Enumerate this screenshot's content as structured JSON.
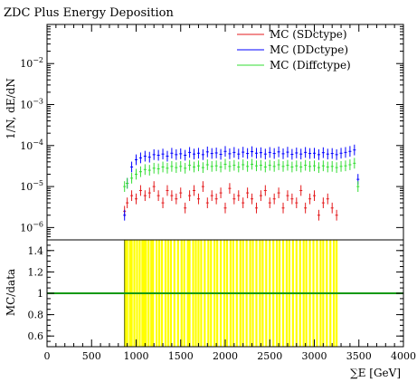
{
  "chart_data": [
    {
      "type": "scatter",
      "panel": "main",
      "title": "ZDC Plus Energy Deposition",
      "ylabel": "1/N, dE/dN",
      "xlabel": "",
      "yscale": "log",
      "ylim": [
        5e-07,
        0.09
      ],
      "xlim": [
        0,
        4000
      ],
      "yticks": [
        {
          "value": 1e-06,
          "label": "10^{-6}"
        },
        {
          "value": 1e-05,
          "label": "10^{-5}"
        },
        {
          "value": 0.0001,
          "label": "10^{-4}"
        },
        {
          "value": 0.001,
          "label": "10^{-3}"
        },
        {
          "value": 0.01,
          "label": "10^{-2}"
        }
      ],
      "legend_position": "top-right",
      "series": [
        {
          "name": "MC (SDctype)",
          "color": "#e41a1c",
          "x": [
            870,
            900,
            950,
            1000,
            1050,
            1100,
            1150,
            1200,
            1250,
            1300,
            1350,
            1400,
            1450,
            1500,
            1550,
            1600,
            1650,
            1700,
            1750,
            1800,
            1850,
            1900,
            1950,
            2000,
            2050,
            2100,
            2150,
            2200,
            2250,
            2300,
            2350,
            2400,
            2450,
            2500,
            2550,
            2600,
            2650,
            2700,
            2750,
            2800,
            2850,
            2900,
            2950,
            3000,
            3050,
            3100,
            3150,
            3200,
            3250
          ],
          "y": [
            2.5e-06,
            4e-06,
            6e-06,
            5e-06,
            8e-06,
            6e-06,
            7e-06,
            1e-05,
            6e-06,
            4e-06,
            8e-06,
            6e-06,
            5e-06,
            7e-06,
            3e-06,
            6e-06,
            8e-06,
            5e-06,
            1e-05,
            4e-06,
            6e-06,
            5e-06,
            7e-06,
            3e-06,
            9e-06,
            5e-06,
            6e-06,
            4e-06,
            7e-06,
            5e-06,
            3e-06,
            6e-06,
            8e-06,
            4e-06,
            5e-06,
            7e-06,
            3e-06,
            6e-06,
            5e-06,
            4e-06,
            8e-06,
            3e-06,
            5e-06,
            6e-06,
            2e-06,
            4e-06,
            5e-06,
            3e-06,
            2e-06
          ]
        },
        {
          "name": "MC (DDctype)",
          "color": "#0000ff",
          "x": [
            870,
            900,
            950,
            1000,
            1050,
            1100,
            1150,
            1200,
            1250,
            1300,
            1350,
            1400,
            1450,
            1500,
            1550,
            1600,
            1650,
            1700,
            1750,
            1800,
            1850,
            1900,
            1950,
            2000,
            2050,
            2100,
            2150,
            2200,
            2250,
            2300,
            2350,
            2400,
            2450,
            2500,
            2550,
            2600,
            2650,
            2700,
            2750,
            2800,
            2850,
            2900,
            2950,
            3000,
            3050,
            3100,
            3150,
            3200,
            3250,
            3300,
            3350,
            3400,
            3450,
            3490
          ],
          "y": [
            2e-06,
            1.2e-05,
            3e-05,
            4.5e-05,
            5e-05,
            5.5e-05,
            5.2e-05,
            6e-05,
            5.8e-05,
            6.2e-05,
            5.5e-05,
            6.5e-05,
            6e-05,
            6.3e-05,
            5.8e-05,
            6.8e-05,
            6.2e-05,
            6.5e-05,
            6e-05,
            7e-05,
            6.4e-05,
            6.6e-05,
            6.1e-05,
            7.2e-05,
            6.3e-05,
            6.8e-05,
            6.2e-05,
            6.9e-05,
            6.4e-05,
            7.1e-05,
            6.5e-05,
            6.7e-05,
            6.2e-05,
            6.8e-05,
            6.4e-05,
            7e-05,
            6.3e-05,
            6.9e-05,
            6.1e-05,
            6.6e-05,
            6.2e-05,
            6.8e-05,
            6.4e-05,
            6.5e-05,
            6e-05,
            6.7e-05,
            6.2e-05,
            6.4e-05,
            6e-05,
            6.5e-05,
            6.8e-05,
            7.2e-05,
            7.8e-05,
            1.5e-05
          ]
        },
        {
          "name": "MC (Diffctype)",
          "color": "#33dd33",
          "x": [
            870,
            900,
            950,
            1000,
            1050,
            1100,
            1150,
            1200,
            1250,
            1300,
            1350,
            1400,
            1450,
            1500,
            1550,
            1600,
            1650,
            1700,
            1750,
            1800,
            1850,
            1900,
            1950,
            2000,
            2050,
            2100,
            2150,
            2200,
            2250,
            2300,
            2350,
            2400,
            2450,
            2500,
            2550,
            2600,
            2650,
            2700,
            2750,
            2800,
            2850,
            2900,
            2950,
            3000,
            3050,
            3100,
            3150,
            3200,
            3250,
            3300,
            3350,
            3400,
            3450,
            3490
          ],
          "y": [
            1e-05,
            1.2e-05,
            1.6e-05,
            2e-05,
            2.3e-05,
            2.6e-05,
            2.5e-05,
            2.8e-05,
            2.7e-05,
            3e-05,
            2.8e-05,
            3.1e-05,
            2.9e-05,
            3.1e-05,
            2.8e-05,
            3.3e-05,
            3e-05,
            3.2e-05,
            2.9e-05,
            3.4e-05,
            3.1e-05,
            3.2e-05,
            3e-05,
            3.5e-05,
            3.1e-05,
            3.3e-05,
            3e-05,
            3.4e-05,
            3.1e-05,
            3.5e-05,
            3.2e-05,
            3.3e-05,
            3e-05,
            3.3e-05,
            3.1e-05,
            3.4e-05,
            3.1e-05,
            3.3e-05,
            3e-05,
            3.2e-05,
            3e-05,
            3.3e-05,
            3.1e-05,
            3.2e-05,
            2.9e-05,
            3.2e-05,
            3e-05,
            3.1e-05,
            2.9e-05,
            3.1e-05,
            3.2e-05,
            3.4e-05,
            3.7e-05,
            1e-05
          ]
        }
      ]
    },
    {
      "type": "bar",
      "panel": "ratio",
      "ylabel": "MC/data",
      "xlabel": "∑E [GeV]",
      "xlim": [
        0,
        4000
      ],
      "ylim": [
        0.5,
        1.5
      ],
      "yticks": [
        0.6,
        0.8,
        1,
        1.2,
        1.4
      ],
      "xticks": [
        0,
        500,
        1000,
        1500,
        2000,
        2500,
        3000,
        3500,
        4000
      ],
      "reference_line": 1,
      "band_color": "#ffff00",
      "band_x": [
        880,
        900,
        930,
        950,
        980,
        1010,
        1040,
        1070,
        1090,
        1110,
        1140,
        1170,
        1190,
        1230,
        1260,
        1290,
        1330,
        1360,
        1390,
        1430,
        1470,
        1510,
        1540,
        1580,
        1600,
        1640,
        1670,
        1700,
        1730,
        1770,
        1810,
        1840,
        1880,
        1910,
        1950,
        1990,
        2020,
        2060,
        2090,
        2130,
        2170,
        2200,
        2240,
        2280,
        2310,
        2350,
        2390,
        2420,
        2460,
        2500,
        2540,
        2580,
        2610,
        2650,
        2690,
        2720,
        2760,
        2800,
        2840,
        2880,
        2910,
        2950,
        2990,
        3030,
        3070,
        3100,
        3140,
        3180,
        3220,
        3250
      ]
    }
  ]
}
